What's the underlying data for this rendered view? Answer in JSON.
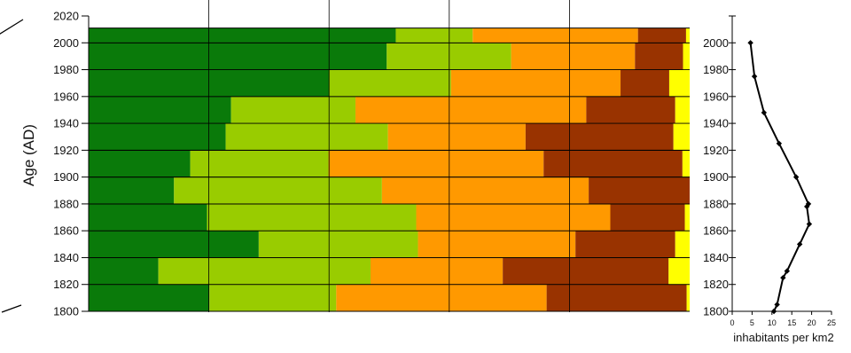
{
  "chart_data": [
    {
      "type": "bar",
      "orientation": "horizontal-stacked-percent",
      "ylabel": "Age (AD)",
      "ylim": [
        1800,
        2020
      ],
      "yticks": [
        1800,
        1820,
        1840,
        1860,
        1880,
        1900,
        1920,
        1940,
        1960,
        1980,
        2000,
        2020
      ],
      "ytick_labels": [
        "1800",
        "1820",
        "1840",
        "1860",
        "1880",
        "1900",
        "1920",
        "1940",
        "1960",
        "1980",
        "2000",
        "2020"
      ],
      "vertical_gridlines_percent": [
        20,
        40,
        60,
        80
      ],
      "legend": "none",
      "series_colors": [
        "#0a7a0a",
        "#99cc00",
        "#ff9900",
        "#993300",
        "#ffff00"
      ],
      "bars": [
        {
          "bottom": 1800,
          "top": 1820,
          "values": [
            20.1,
            21.1,
            35.0,
            23.3,
            0.5
          ]
        },
        {
          "bottom": 1820,
          "top": 1840,
          "values": [
            11.6,
            35.3,
            22.0,
            27.6,
            3.5
          ]
        },
        {
          "bottom": 1840,
          "top": 1860,
          "values": [
            28.3,
            26.5,
            26.2,
            16.6,
            2.4
          ]
        },
        {
          "bottom": 1860,
          "top": 1880,
          "values": [
            19.7,
            34.8,
            32.3,
            12.4,
            0.8
          ]
        },
        {
          "bottom": 1880,
          "top": 1900,
          "values": [
            14.2,
            34.6,
            34.4,
            16.8,
            0.0
          ]
        },
        {
          "bottom": 1900,
          "top": 1920,
          "values": [
            16.9,
            23.0,
            35.8,
            23.1,
            1.2
          ]
        },
        {
          "bottom": 1920,
          "top": 1940,
          "values": [
            22.8,
            27.0,
            22.9,
            24.6,
            2.7
          ]
        },
        {
          "bottom": 1940,
          "top": 1960,
          "values": [
            23.7,
            20.7,
            38.4,
            14.8,
            2.4
          ]
        },
        {
          "bottom": 1960,
          "top": 1980,
          "values": [
            40.0,
            20.3,
            28.2,
            8.1,
            3.4
          ]
        },
        {
          "bottom": 1980,
          "top": 2000,
          "values": [
            49.6,
            20.7,
            20.6,
            8.0,
            1.1
          ]
        },
        {
          "bottom": 2000,
          "top": 2011,
          "values": [
            51.1,
            12.8,
            27.5,
            8.0,
            0.6
          ]
        }
      ]
    },
    {
      "type": "line",
      "xlabel": "inhabitants per km2",
      "xlim": [
        0,
        25
      ],
      "xticks": [
        0,
        5,
        10,
        15,
        20,
        25
      ],
      "xtick_labels": [
        "0",
        "5",
        "10",
        "15",
        "20",
        "25"
      ],
      "ylim": [
        1800,
        2020
      ],
      "yticks": [
        1800,
        1820,
        1840,
        1860,
        1880,
        1900,
        1920,
        1940,
        1960,
        1980,
        2000
      ],
      "ytick_labels": [
        "1800",
        "1820",
        "1840",
        "1860",
        "1880",
        "1900",
        "1920",
        "1940",
        "1960",
        "1980",
        "2000"
      ],
      "points": [
        {
          "year": 1800,
          "value": 10.5
        },
        {
          "year": 1805,
          "value": 11.3
        },
        {
          "year": 1825,
          "value": 12.8
        },
        {
          "year": 1830,
          "value": 13.8
        },
        {
          "year": 1850,
          "value": 17.0
        },
        {
          "year": 1865,
          "value": 19.4
        },
        {
          "year": 1878,
          "value": 18.8
        },
        {
          "year": 1880,
          "value": 19.2
        },
        {
          "year": 1900,
          "value": 16.1
        },
        {
          "year": 1925,
          "value": 11.8
        },
        {
          "year": 1948,
          "value": 8.0
        },
        {
          "year": 1975,
          "value": 5.6
        },
        {
          "year": 2000,
          "value": 4.6
        }
      ],
      "marker": "diamond"
    }
  ]
}
